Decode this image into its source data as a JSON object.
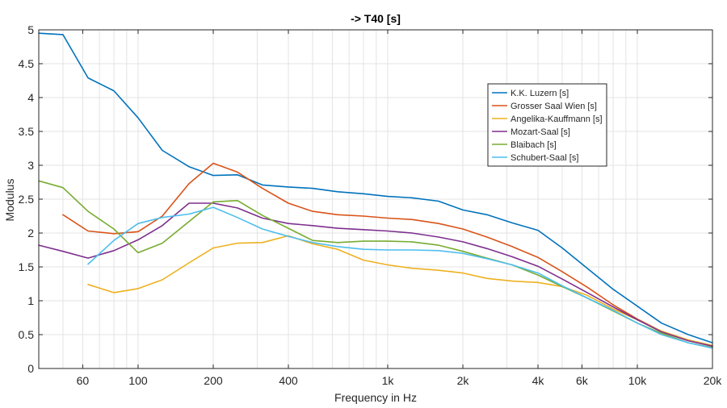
{
  "chart_data": {
    "type": "line",
    "title": "-> T40 [s]",
    "xlabel": "Frequency in Hz",
    "ylabel": "Modulus",
    "xscale": "log",
    "xlim": [
      40,
      20000
    ],
    "ylim": [
      0,
      5
    ],
    "grid": true,
    "legend_position": "top-right",
    "x": [
      40,
      50,
      63,
      80,
      100,
      125,
      160,
      200,
      250,
      315,
      400,
      500,
      630,
      800,
      1000,
      1250,
      1600,
      2000,
      2500,
      3150,
      4000,
      5000,
      6300,
      8000,
      10000,
      12500,
      16000,
      20000
    ],
    "x_ticks": [
      {
        "value": 60,
        "label": "60"
      },
      {
        "value": 100,
        "label": "100"
      },
      {
        "value": 200,
        "label": "200"
      },
      {
        "value": 400,
        "label": "400"
      },
      {
        "value": 1000,
        "label": "1k"
      },
      {
        "value": 2000,
        "label": "2k"
      },
      {
        "value": 4000,
        "label": "4k"
      },
      {
        "value": 6000,
        "label": "6k"
      },
      {
        "value": 10000,
        "label": "10k"
      },
      {
        "value": 20000,
        "label": "20k"
      }
    ],
    "x_grid_values": [
      50,
      60,
      70,
      80,
      90,
      100,
      200,
      300,
      400,
      500,
      600,
      700,
      800,
      900,
      1000,
      2000,
      3000,
      4000,
      5000,
      6000,
      7000,
      8000,
      9000,
      10000,
      20000
    ],
    "y_ticks": [
      {
        "value": 0,
        "label": "0"
      },
      {
        "value": 0.5,
        "label": "0.5"
      },
      {
        "value": 1,
        "label": "1"
      },
      {
        "value": 1.5,
        "label": "1.5"
      },
      {
        "value": 2,
        "label": "2"
      },
      {
        "value": 2.5,
        "label": "2.5"
      },
      {
        "value": 3,
        "label": "3"
      },
      {
        "value": 3.5,
        "label": "3.5"
      },
      {
        "value": 4,
        "label": "4"
      },
      {
        "value": 4.5,
        "label": "4.5"
      },
      {
        "value": 5,
        "label": "5"
      }
    ],
    "series": [
      {
        "name": "K.K. Luzern [s]",
        "color": "#0072BD",
        "values": [
          4.95,
          4.93,
          4.29,
          4.1,
          3.7,
          3.22,
          2.98,
          2.85,
          2.86,
          2.71,
          2.68,
          2.66,
          2.61,
          2.58,
          2.54,
          2.52,
          2.47,
          2.34,
          2.27,
          2.15,
          2.04,
          1.78,
          1.48,
          1.17,
          0.92,
          0.67,
          0.5,
          0.38
        ]
      },
      {
        "name": "Grosser Saal Wien [s]",
        "color": "#D95319",
        "values": [
          null,
          2.27,
          2.03,
          1.99,
          2.02,
          2.25,
          2.73,
          3.03,
          2.9,
          2.66,
          2.44,
          2.32,
          2.27,
          2.25,
          2.22,
          2.2,
          2.14,
          2.06,
          1.94,
          1.8,
          1.64,
          1.43,
          1.2,
          0.94,
          0.73,
          0.55,
          0.42,
          0.33
        ]
      },
      {
        "name": "Angelika-Kauffmann [s]",
        "color": "#EDB120",
        "values": [
          null,
          null,
          1.24,
          1.12,
          1.18,
          1.31,
          1.56,
          1.78,
          1.85,
          1.86,
          1.96,
          1.84,
          1.76,
          1.6,
          1.53,
          1.48,
          1.45,
          1.41,
          1.33,
          1.29,
          1.27,
          1.21,
          1.08,
          0.88,
          0.72,
          0.55,
          0.42,
          0.34
        ]
      },
      {
        "name": "Mozart-Saal [s]",
        "color": "#7E2F8E",
        "values": [
          1.82,
          1.73,
          1.63,
          1.74,
          1.9,
          2.11,
          2.44,
          2.44,
          2.37,
          2.22,
          2.14,
          2.11,
          2.07,
          2.05,
          2.03,
          2.0,
          1.94,
          1.87,
          1.77,
          1.65,
          1.51,
          1.32,
          1.12,
          0.91,
          0.72,
          0.54,
          0.41,
          0.33
        ]
      },
      {
        "name": "Blaibach [s]",
        "color": "#77AC30",
        "values": [
          2.77,
          2.67,
          2.32,
          2.06,
          1.71,
          1.85,
          2.17,
          2.46,
          2.48,
          2.26,
          2.07,
          1.89,
          1.86,
          1.88,
          1.88,
          1.87,
          1.82,
          1.73,
          1.63,
          1.53,
          1.38,
          1.21,
          1.04,
          0.85,
          0.67,
          0.52,
          0.38,
          0.31
        ]
      },
      {
        "name": "Schubert-Saal [s]",
        "color": "#4DBEEE",
        "values": [
          null,
          null,
          1.54,
          1.89,
          2.14,
          2.23,
          2.28,
          2.38,
          2.23,
          2.06,
          1.95,
          1.86,
          1.8,
          1.76,
          1.75,
          1.75,
          1.74,
          1.7,
          1.62,
          1.53,
          1.41,
          1.22,
          1.04,
          0.86,
          0.67,
          0.5,
          0.38,
          0.3
        ]
      }
    ]
  }
}
